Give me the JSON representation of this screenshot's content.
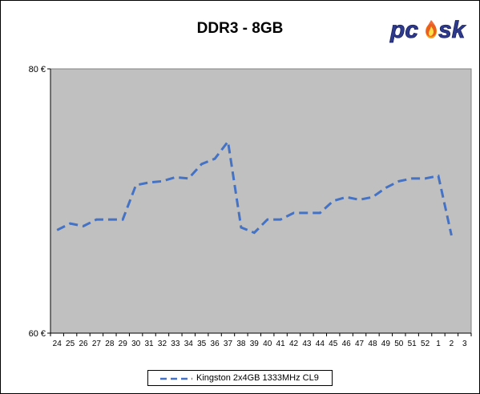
{
  "chart_data": {
    "type": "line",
    "title": "DDR3 - 8GB",
    "xlabel": "",
    "ylabel": "",
    "ylim": [
      60,
      80
    ],
    "y_ticks": [
      "60 €",
      "80 €"
    ],
    "y_tick_values": [
      60,
      80
    ],
    "categories": [
      "24",
      "25",
      "26",
      "27",
      "28",
      "29",
      "30",
      "31",
      "32",
      "33",
      "34",
      "35",
      "36",
      "37",
      "38",
      "39",
      "40",
      "41",
      "42",
      "43",
      "44",
      "45",
      "46",
      "47",
      "48",
      "49",
      "50",
      "51",
      "52",
      "1",
      "2",
      "3"
    ],
    "series": [
      {
        "name": "Kingston 2x4GB 1333MHz CL9",
        "color": "#4472C4",
        "style": "dashed",
        "values": [
          67.8,
          68.3,
          68.1,
          68.6,
          68.6,
          68.6,
          71.2,
          71.4,
          71.5,
          71.8,
          71.7,
          72.8,
          73.2,
          74.5,
          68.0,
          67.6,
          68.6,
          68.6,
          69.1,
          69.1,
          69.1,
          70.0,
          70.3,
          70.1,
          70.3,
          71.0,
          71.5,
          71.7,
          71.7,
          71.9,
          67.4,
          null
        ]
      }
    ],
    "plot_background": "#C0C0C0",
    "grid": false,
    "legend_position": "bottom"
  },
  "logo": {
    "text": "pcs k",
    "name": "pcask-logo"
  }
}
